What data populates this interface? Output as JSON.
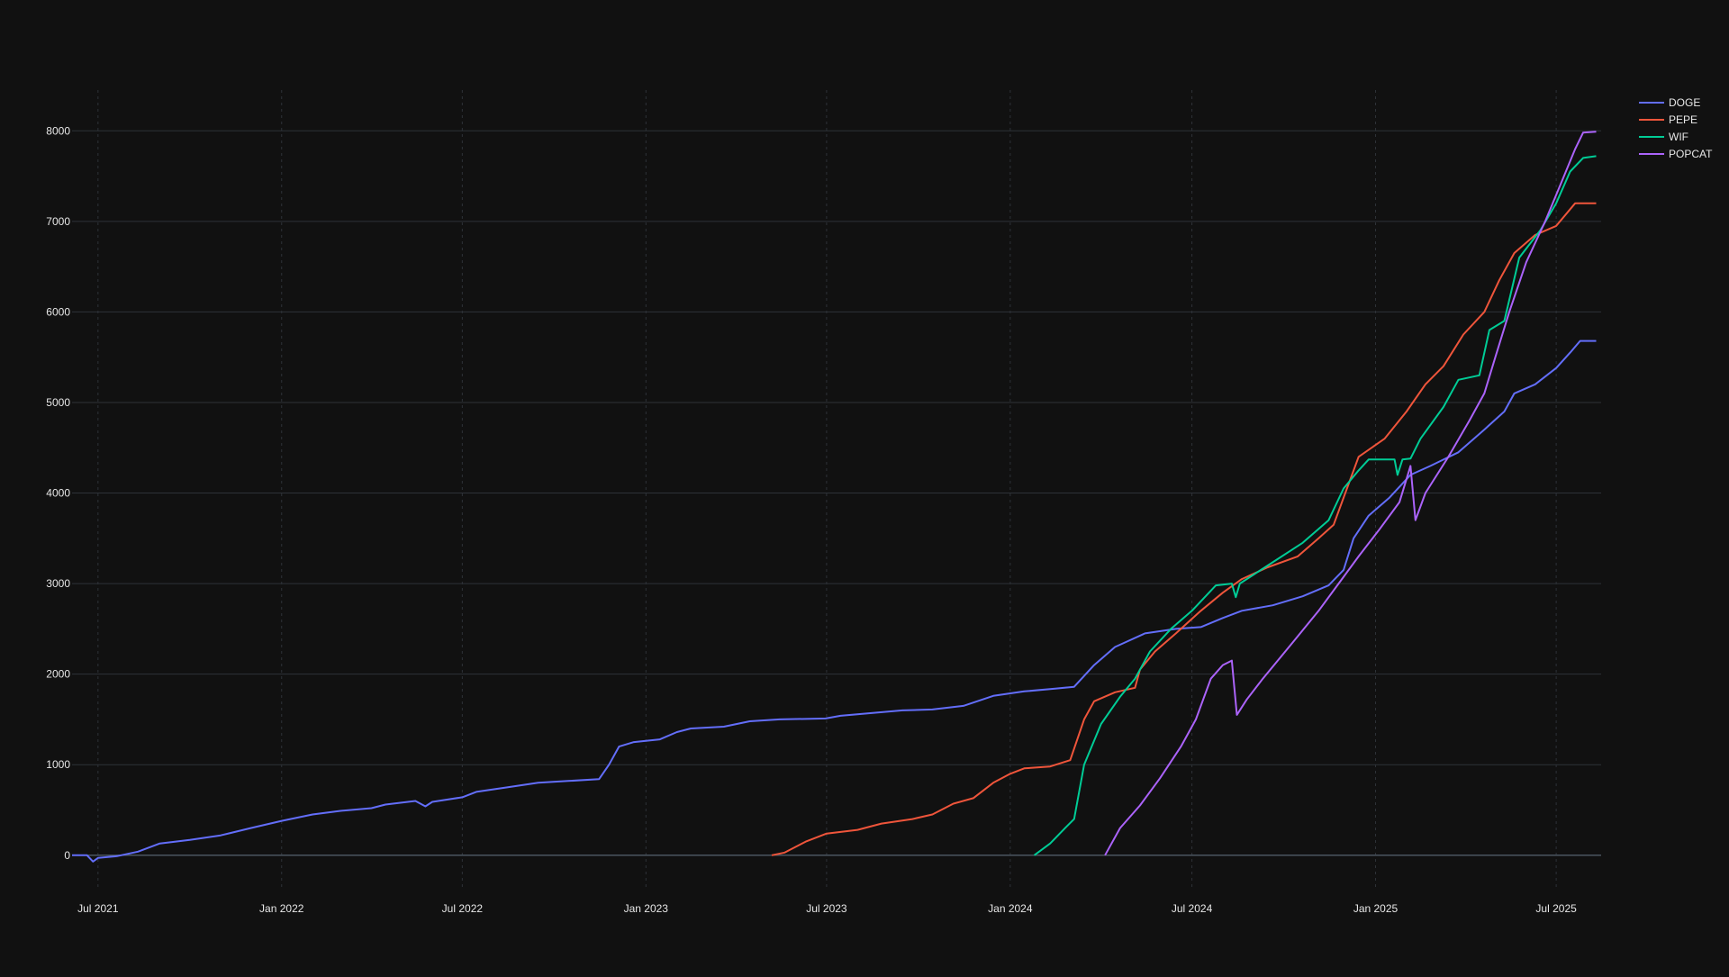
{
  "colors": {
    "background": "#111111",
    "grid": "#2e3238",
    "zero_line": "#4a5560",
    "text": "#e8e8e8"
  },
  "legend": {
    "position": "top-right",
    "items": [
      "DOGE",
      "PEPE",
      "WIF",
      "POPCAT"
    ]
  },
  "chart_data": {
    "type": "line",
    "title": "",
    "xlabel": "",
    "ylabel": "",
    "grid": true,
    "xlim": [
      "2021-06-05",
      "2025-08-15"
    ],
    "ylim": [
      -350,
      8450
    ],
    "x_ticks": [
      {
        "date": "2021-07-01",
        "label": "Jul 2021"
      },
      {
        "date": "2022-01-01",
        "label": "Jan 2022"
      },
      {
        "date": "2022-07-01",
        "label": "Jul 2022"
      },
      {
        "date": "2023-01-01",
        "label": "Jan 2023"
      },
      {
        "date": "2023-07-01",
        "label": "Jul 2023"
      },
      {
        "date": "2024-01-01",
        "label": "Jan 2024"
      },
      {
        "date": "2024-07-01",
        "label": "Jul 2024"
      },
      {
        "date": "2025-01-01",
        "label": "Jan 2025"
      },
      {
        "date": "2025-07-01",
        "label": "Jul 2025"
      }
    ],
    "y_ticks": [
      0,
      1000,
      2000,
      3000,
      4000,
      5000,
      6000,
      7000,
      8000
    ],
    "series": [
      {
        "name": "DOGE",
        "color": "#636efa",
        "points": [
          [
            "2021-06-05",
            0
          ],
          [
            "2021-06-20",
            0
          ],
          [
            "2021-06-26",
            -70
          ],
          [
            "2021-07-01",
            -30
          ],
          [
            "2021-07-20",
            -10
          ],
          [
            "2021-08-10",
            40
          ],
          [
            "2021-09-01",
            130
          ],
          [
            "2021-10-01",
            170
          ],
          [
            "2021-11-01",
            220
          ],
          [
            "2021-12-01",
            300
          ],
          [
            "2022-01-01",
            380
          ],
          [
            "2022-02-01",
            450
          ],
          [
            "2022-03-01",
            490
          ],
          [
            "2022-04-01",
            520
          ],
          [
            "2022-04-15",
            560
          ],
          [
            "2022-05-15",
            600
          ],
          [
            "2022-05-25",
            540
          ],
          [
            "2022-06-01",
            590
          ],
          [
            "2022-07-01",
            640
          ],
          [
            "2022-07-15",
            700
          ],
          [
            "2022-08-15",
            750
          ],
          [
            "2022-09-15",
            800
          ],
          [
            "2022-10-15",
            820
          ],
          [
            "2022-11-15",
            840
          ],
          [
            "2022-11-25",
            1000
          ],
          [
            "2022-12-05",
            1200
          ],
          [
            "2022-12-20",
            1250
          ],
          [
            "2023-01-15",
            1280
          ],
          [
            "2023-02-01",
            1360
          ],
          [
            "2023-02-15",
            1400
          ],
          [
            "2023-03-20",
            1420
          ],
          [
            "2023-04-15",
            1480
          ],
          [
            "2023-05-15",
            1500
          ],
          [
            "2023-06-30",
            1510
          ],
          [
            "2023-07-15",
            1540
          ],
          [
            "2023-08-15",
            1570
          ],
          [
            "2023-09-15",
            1600
          ],
          [
            "2023-10-15",
            1610
          ],
          [
            "2023-11-15",
            1650
          ],
          [
            "2023-12-15",
            1760
          ],
          [
            "2024-01-15",
            1810
          ],
          [
            "2024-02-15",
            1840
          ],
          [
            "2024-03-05",
            1860
          ],
          [
            "2024-03-25",
            2100
          ],
          [
            "2024-04-15",
            2300
          ],
          [
            "2024-05-15",
            2450
          ],
          [
            "2024-06-15",
            2500
          ],
          [
            "2024-07-10",
            2520
          ],
          [
            "2024-08-01",
            2620
          ],
          [
            "2024-08-20",
            2700
          ],
          [
            "2024-09-20",
            2760
          ],
          [
            "2024-10-20",
            2860
          ],
          [
            "2024-11-15",
            2980
          ],
          [
            "2024-11-30",
            3150
          ],
          [
            "2024-12-10",
            3500
          ],
          [
            "2024-12-25",
            3750
          ],
          [
            "2025-01-15",
            3950
          ],
          [
            "2025-02-05",
            4200
          ],
          [
            "2025-02-25",
            4300
          ],
          [
            "2025-03-25",
            4450
          ],
          [
            "2025-04-20",
            4700
          ],
          [
            "2025-05-10",
            4900
          ],
          [
            "2025-05-20",
            5100
          ],
          [
            "2025-06-10",
            5200
          ],
          [
            "2025-07-01",
            5380
          ],
          [
            "2025-07-15",
            5550
          ],
          [
            "2025-07-25",
            5680
          ],
          [
            "2025-08-10",
            5680
          ]
        ]
      },
      {
        "name": "PEPE",
        "color": "#ef553b",
        "points": [
          [
            "2023-05-07",
            0
          ],
          [
            "2023-05-20",
            30
          ],
          [
            "2023-06-10",
            150
          ],
          [
            "2023-07-01",
            240
          ],
          [
            "2023-08-01",
            280
          ],
          [
            "2023-08-25",
            350
          ],
          [
            "2023-09-25",
            400
          ],
          [
            "2023-10-15",
            450
          ],
          [
            "2023-11-05",
            570
          ],
          [
            "2023-11-25",
            630
          ],
          [
            "2023-12-15",
            800
          ],
          [
            "2024-01-01",
            900
          ],
          [
            "2024-01-15",
            960
          ],
          [
            "2024-02-10",
            980
          ],
          [
            "2024-03-01",
            1050
          ],
          [
            "2024-03-15",
            1500
          ],
          [
            "2024-03-25",
            1700
          ],
          [
            "2024-04-15",
            1800
          ],
          [
            "2024-05-05",
            1850
          ],
          [
            "2024-05-10",
            2050
          ],
          [
            "2024-05-25",
            2250
          ],
          [
            "2024-06-15",
            2450
          ],
          [
            "2024-07-10",
            2700
          ],
          [
            "2024-08-01",
            2900
          ],
          [
            "2024-08-20",
            3050
          ],
          [
            "2024-09-15",
            3180
          ],
          [
            "2024-10-15",
            3300
          ],
          [
            "2024-11-05",
            3500
          ],
          [
            "2024-11-20",
            3650
          ],
          [
            "2024-12-05",
            4100
          ],
          [
            "2024-12-15",
            4400
          ],
          [
            "2025-01-10",
            4600
          ],
          [
            "2025-02-01",
            4900
          ],
          [
            "2025-02-20",
            5200
          ],
          [
            "2025-03-10",
            5400
          ],
          [
            "2025-03-30",
            5750
          ],
          [
            "2025-04-20",
            6000
          ],
          [
            "2025-05-05",
            6350
          ],
          [
            "2025-05-20",
            6650
          ],
          [
            "2025-06-10",
            6850
          ],
          [
            "2025-07-01",
            6950
          ],
          [
            "2025-07-20",
            7200
          ],
          [
            "2025-08-10",
            7200
          ]
        ]
      },
      {
        "name": "WIF",
        "color": "#00cc96",
        "points": [
          [
            "2024-01-25",
            0
          ],
          [
            "2024-02-10",
            130
          ],
          [
            "2024-02-25",
            300
          ],
          [
            "2024-03-05",
            400
          ],
          [
            "2024-03-15",
            1000
          ],
          [
            "2024-04-01",
            1450
          ],
          [
            "2024-04-20",
            1750
          ],
          [
            "2024-05-05",
            1950
          ],
          [
            "2024-05-20",
            2250
          ],
          [
            "2024-06-10",
            2500
          ],
          [
            "2024-07-01",
            2700
          ],
          [
            "2024-07-25",
            2980
          ],
          [
            "2024-08-10",
            3000
          ],
          [
            "2024-08-14",
            2850
          ],
          [
            "2024-08-18",
            3000
          ],
          [
            "2024-09-15",
            3200
          ],
          [
            "2024-10-20",
            3450
          ],
          [
            "2024-11-15",
            3700
          ],
          [
            "2024-11-30",
            4050
          ],
          [
            "2024-12-15",
            4250
          ],
          [
            "2024-12-25",
            4370
          ],
          [
            "2025-01-20",
            4370
          ],
          [
            "2025-01-23",
            4200
          ],
          [
            "2025-01-28",
            4370
          ],
          [
            "2025-02-05",
            4380
          ],
          [
            "2025-02-15",
            4600
          ],
          [
            "2025-03-10",
            4950
          ],
          [
            "2025-03-25",
            5250
          ],
          [
            "2025-04-15",
            5300
          ],
          [
            "2025-04-25",
            5800
          ],
          [
            "2025-05-10",
            5900
          ],
          [
            "2025-05-25",
            6600
          ],
          [
            "2025-06-15",
            6900
          ],
          [
            "2025-07-01",
            7200
          ],
          [
            "2025-07-15",
            7550
          ],
          [
            "2025-07-28",
            7700
          ],
          [
            "2025-08-10",
            7720
          ]
        ]
      },
      {
        "name": "POPCAT",
        "color": "#ab63fa",
        "points": [
          [
            "2024-04-05",
            0
          ],
          [
            "2024-04-20",
            300
          ],
          [
            "2024-05-10",
            550
          ],
          [
            "2024-05-30",
            850
          ],
          [
            "2024-06-20",
            1200
          ],
          [
            "2024-07-05",
            1500
          ],
          [
            "2024-07-20",
            1950
          ],
          [
            "2024-08-01",
            2100
          ],
          [
            "2024-08-10",
            2150
          ],
          [
            "2024-08-15",
            1550
          ],
          [
            "2024-08-25",
            1720
          ],
          [
            "2024-09-10",
            1950
          ],
          [
            "2024-10-10",
            2350
          ],
          [
            "2024-11-05",
            2700
          ],
          [
            "2024-11-25",
            3000
          ],
          [
            "2024-12-15",
            3300
          ],
          [
            "2025-01-05",
            3600
          ],
          [
            "2025-01-25",
            3900
          ],
          [
            "2025-02-05",
            4300
          ],
          [
            "2025-02-10",
            3700
          ],
          [
            "2025-02-20",
            4000
          ],
          [
            "2025-03-15",
            4400
          ],
          [
            "2025-04-05",
            4800
          ],
          [
            "2025-04-20",
            5100
          ],
          [
            "2025-05-01",
            5500
          ],
          [
            "2025-05-15",
            6000
          ],
          [
            "2025-06-01",
            6550
          ],
          [
            "2025-06-20",
            7000
          ],
          [
            "2025-07-05",
            7400
          ],
          [
            "2025-07-20",
            7800
          ],
          [
            "2025-07-28",
            7980
          ],
          [
            "2025-08-10",
            7990
          ]
        ]
      }
    ]
  }
}
